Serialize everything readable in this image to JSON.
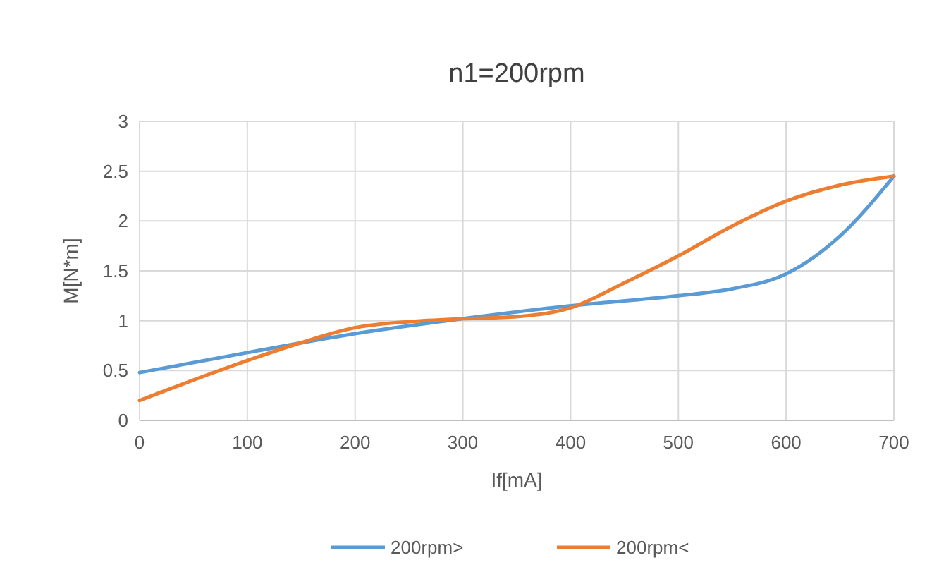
{
  "chart_data": {
    "type": "line",
    "title": "n1=200rpm",
    "xlabel": "If[mA]",
    "ylabel": "M[N*m]",
    "xlim": [
      0,
      700
    ],
    "xticks": [
      0,
      100,
      200,
      300,
      400,
      500,
      600,
      700
    ],
    "ylim": [
      0,
      3
    ],
    "yticks": [
      0,
      0.5,
      1,
      1.5,
      2,
      2.5,
      3
    ],
    "grid": true,
    "legend": "bottom",
    "series": [
      {
        "name": "200rpm>",
        "color": "#5b9bd5",
        "x": [
          0,
          100,
          200,
          300,
          400,
          500,
          550,
          600,
          650,
          700
        ],
        "values": [
          0.48,
          0.68,
          0.87,
          1.02,
          1.15,
          1.25,
          1.32,
          1.47,
          1.85,
          2.45
        ]
      },
      {
        "name": "200rpm<",
        "color": "#ed7d31",
        "x": [
          0,
          100,
          150,
          200,
          250,
          300,
          350,
          400,
          450,
          500,
          550,
          600,
          650,
          700
        ],
        "values": [
          0.2,
          0.6,
          0.78,
          0.93,
          0.99,
          1.02,
          1.04,
          1.13,
          1.38,
          1.65,
          1.95,
          2.2,
          2.36,
          2.45
        ]
      }
    ]
  }
}
